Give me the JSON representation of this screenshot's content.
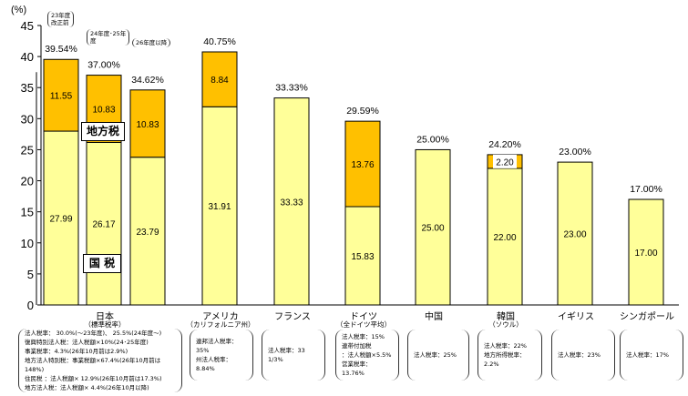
{
  "chart_data": {
    "type": "bar",
    "stacked": true,
    "ylabel": "(%)",
    "ylim": [
      0,
      45
    ],
    "yticks": [
      0,
      5,
      10,
      15,
      20,
      25,
      30,
      35,
      40,
      45
    ],
    "colors": {
      "national": "#FFFF99",
      "local": "#FFC000"
    },
    "legend": {
      "local": "地方税",
      "national": "国 税"
    },
    "bars": [
      {
        "group": "日本",
        "note": "23年度\n改正前",
        "national": 27.99,
        "local": 11.55,
        "total": "39.54%"
      },
      {
        "group": "日本",
        "note": "24年度･25年\n度",
        "national": 26.17,
        "local": 10.83,
        "total": "37.00%"
      },
      {
        "group": "日本",
        "note": "26年度以降",
        "national": 23.79,
        "local": 10.83,
        "total": "34.62%"
      },
      {
        "group": "アメリカ",
        "national": 31.91,
        "local": 8.84,
        "total": "40.75%"
      },
      {
        "group": "フランス",
        "national": 33.33,
        "local": 0,
        "total": "33.33%"
      },
      {
        "group": "ドイツ",
        "national": 15.83,
        "local": 13.76,
        "total": "29.59%"
      },
      {
        "group": "中国",
        "national": 25.0,
        "local": 0,
        "total": "25.00%"
      },
      {
        "group": "韓国",
        "national": 22.0,
        "local": 2.2,
        "total": "24.20%"
      },
      {
        "group": "イギリス",
        "national": 23.0,
        "local": 0,
        "total": "23.00%"
      },
      {
        "group": "シンガポール",
        "national": 17.0,
        "local": 0,
        "total": "17.00%"
      }
    ],
    "countries": [
      {
        "name": "日本",
        "sub": "（標準税率）",
        "notes": [
          "法人税率： 30.0%(～23年度)、 25.5%(24年度～)",
          "復興特別法人税：法人税額×10%(24･25年度)",
          "事業税率：4.3%(26年10月前は2.9%)",
          "地方法人特別税：事業税額×67.4%(26年10月前は148%)",
          "住民税 ：法人税額× 12.9%(26年10月前は17.3%)",
          "地方法人税：法人税額× 4.4%(26年10月以降)"
        ]
      },
      {
        "name": "アメリカ",
        "sub": "（カリフォルニア州）",
        "notes": [
          "連邦法人税率：35%",
          "州法人税率：8.84%"
        ]
      },
      {
        "name": "フランス",
        "sub": "",
        "notes": [
          "法人税率：33 1/3%"
        ]
      },
      {
        "name": "ドイツ",
        "sub": "（全ドイツ平均）",
        "notes": [
          "法人税率：15%",
          "連帯付加税",
          "：法人税額×5.5%",
          "営業税率：13.76%"
        ]
      },
      {
        "name": "中国",
        "sub": "",
        "notes": [
          "法人税率：25%"
        ]
      },
      {
        "name": "韓国",
        "sub": "（ソウル）",
        "notes": [
          "法人税率：22%",
          "地方所得税率：2.2%"
        ]
      },
      {
        "name": "イギリス",
        "sub": "",
        "notes": [
          "法人税率：23%"
        ]
      },
      {
        "name": "シンガポール",
        "sub": "",
        "notes": [
          "法人税率：17%"
        ]
      }
    ]
  }
}
